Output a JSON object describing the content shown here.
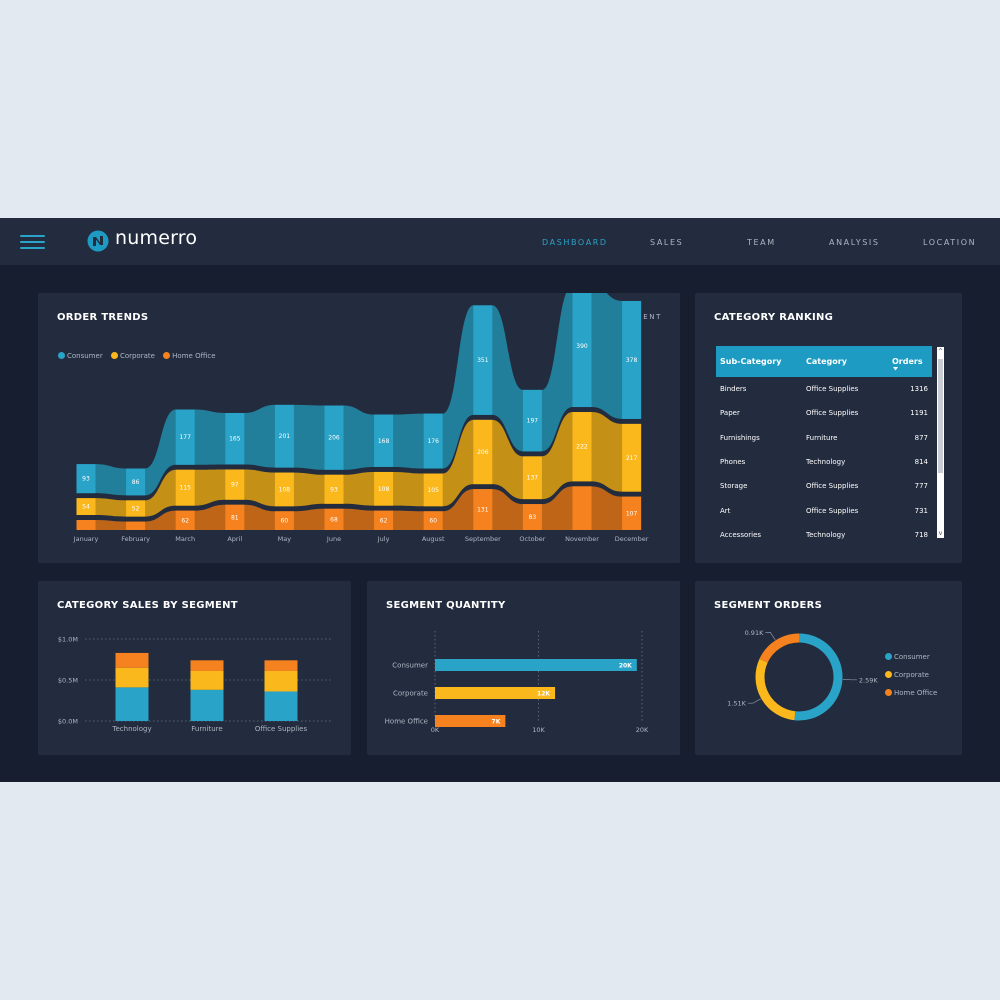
{
  "header": {
    "brand": "numerro",
    "nav": [
      "DASHBOARD",
      "SALES",
      "TEAM",
      "ANALYSIS",
      "LOCATION"
    ],
    "active_nav": "DASHBOARD"
  },
  "colors": {
    "consumer": "#2aa3c8",
    "corporate": "#fbb81c",
    "home_office": "#f5821f",
    "panel": "#232c3e",
    "background": "#161e2f"
  },
  "order_trends": {
    "title": "ORDER TRENDS",
    "subtitle": "SPLIT BY SEGMENT",
    "legend": [
      "Consumer",
      "Corporate",
      "Home Office"
    ]
  },
  "category_ranking": {
    "title": "CATEGORY RANKING",
    "columns": [
      "Sub-Category",
      "Category",
      "Orders"
    ],
    "rows": [
      [
        "Binders",
        "Office Supplies",
        "1316"
      ],
      [
        "Paper",
        "Office Supplies",
        "1191"
      ],
      [
        "Furnishings",
        "Furniture",
        "877"
      ],
      [
        "Phones",
        "Technology",
        "814"
      ],
      [
        "Storage",
        "Office Supplies",
        "777"
      ],
      [
        "Art",
        "Office Supplies",
        "731"
      ],
      [
        "Accessories",
        "Technology",
        "718"
      ]
    ]
  },
  "category_sales": {
    "title": "CATEGORY SALES BY SEGMENT"
  },
  "segment_quantity": {
    "title": "SEGMENT QUANTITY"
  },
  "segment_orders": {
    "title": "SEGMENT ORDERS",
    "legend": [
      "Consumer",
      "Corporate",
      "Home Office"
    ]
  },
  "chart_data": [
    {
      "type": "area",
      "title": "ORDER TRENDS",
      "categories": [
        "January",
        "February",
        "March",
        "April",
        "May",
        "June",
        "July",
        "August",
        "September",
        "October",
        "November",
        "December"
      ],
      "series": [
        {
          "name": "Consumer",
          "values": [
            93,
            86,
            177,
            165,
            201,
            206,
            168,
            176,
            351,
            197,
            390,
            378
          ]
        },
        {
          "name": "Corporate",
          "values": [
            54,
            52,
            115,
            97,
            108,
            93,
            108,
            105,
            206,
            137,
            222,
            217
          ]
        },
        {
          "name": "Home Office",
          "values": [
            32,
            27,
            62,
            81,
            60,
            68,
            62,
            60,
            131,
            83,
            140,
            107
          ]
        }
      ],
      "value_labels": [
        [
          "93",
          "86",
          "177",
          "165",
          "201",
          "206",
          "168",
          "176",
          "351",
          "197",
          "390",
          "378"
        ],
        [
          "54",
          "52",
          "115",
          "97",
          "108",
          "93",
          "108",
          "105",
          "206",
          "137",
          "222",
          "217"
        ],
        [
          "",
          "",
          "62",
          "81",
          "60",
          "68",
          "62",
          "60",
          "131",
          "83",
          "",
          "107"
        ]
      ]
    },
    {
      "type": "bar",
      "title": "CATEGORY SALES BY SEGMENT",
      "categories": [
        "Technology",
        "Furniture",
        "Office Supplies"
      ],
      "series": [
        {
          "name": "Consumer",
          "values": [
            0.41,
            0.38,
            0.36
          ]
        },
        {
          "name": "Corporate",
          "values": [
            0.24,
            0.23,
            0.25
          ]
        },
        {
          "name": "Home Office",
          "values": [
            0.18,
            0.13,
            0.13
          ]
        }
      ],
      "y_ticks": [
        "$0.0M",
        "$0.5M",
        "$1.0M"
      ],
      "ylim": [
        0,
        1.0
      ],
      "stacked": true
    },
    {
      "type": "bar",
      "orientation": "horizontal",
      "title": "SEGMENT QUANTITY",
      "categories": [
        "Consumer",
        "Corporate",
        "Home Office"
      ],
      "values": [
        19.5,
        11.6,
        6.8
      ],
      "value_labels": [
        "20K",
        "12K",
        "7K"
      ],
      "x_ticks": [
        "0K",
        "10K",
        "20K"
      ],
      "xlim": [
        0,
        20
      ]
    },
    {
      "type": "pie",
      "donut": true,
      "title": "SEGMENT ORDERS",
      "categories": [
        "Consumer",
        "Corporate",
        "Home Office"
      ],
      "values": [
        2.59,
        1.51,
        0.91
      ],
      "value_labels": [
        "2.59K",
        "1.51K",
        "0.91K"
      ]
    }
  ]
}
